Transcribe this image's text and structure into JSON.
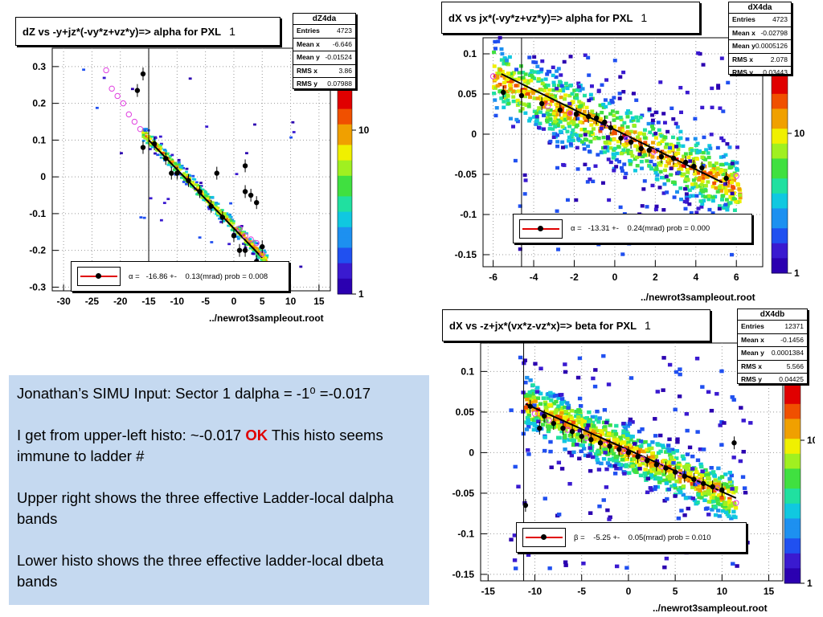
{
  "panels": [
    {
      "title": "dZ vs -y+jz*(-vy*z+vz*y)=> alpha for PXL",
      "title_num": "1",
      "stats_name": "dZ4da",
      "stats": [
        {
          "label": "Entries",
          "value": "4723"
        },
        {
          "label": "Mean x",
          "value": "-6.646"
        },
        {
          "label": "Mean y",
          "value": "-0.01524"
        },
        {
          "label": "RMS x",
          "value": "3.86"
        },
        {
          "label": "RMS y",
          "value": "0.07988"
        }
      ],
      "fit_text": "α =   -16.86 +-    0.13(mrad) prob = 0.008",
      "filename": "../newrot3sampleout.root",
      "palette_labels": [
        "10",
        "1"
      ]
    },
    {
      "title": "dX vs    jx*(-vy*z+vz*y)=> alpha for PXL",
      "title_num": "1",
      "stats_name": "dX4da",
      "stats": [
        {
          "label": "Entries",
          "value": "4723"
        },
        {
          "label": "Mean x",
          "value": "-0.02798"
        },
        {
          "label": "Mean y",
          "value": "0.0005126"
        },
        {
          "label": "RMS x",
          "value": "2.078"
        },
        {
          "label": "RMS y",
          "value": "0.03443"
        }
      ],
      "fit_text": "α =   -13.31 +-    0.24(mrad) prob = 0.000",
      "filename": "../newrot3sampleout.root",
      "palette_labels": [
        "10",
        "1"
      ]
    },
    {
      "title": "dX vs  -z+jx*(vx*z-vz*x)=> beta  for PXL",
      "title_num": "1",
      "stats_name": "dX4db",
      "stats": [
        {
          "label": "Entries",
          "value": "12371"
        },
        {
          "label": "Mean x",
          "value": "-0.1456"
        },
        {
          "label": "Mean y",
          "value": "0.0001384"
        },
        {
          "label": "RMS x",
          "value": "5.566"
        },
        {
          "label": "RMS y",
          "value": "0.04425"
        }
      ],
      "fit_text": "β =    -5.25 +-    0.05(mrad) prob = 0.010",
      "filename": "../newrot3sampleout.root",
      "palette_labels": [
        "10",
        "1"
      ]
    }
  ],
  "text": {
    "line1": "Jonathan’s SIMU  Input: Sector 1  dalpha = -1⁰ =-0.017",
    "line2_pre": "I get from upper-left histo: ~-0.017  ",
    "line2_ok": "OK",
    "line2_post": "  This histo seems immune to ladder #",
    "line3": "Upper right shows the three effective Ladder-local dalpha bands",
    "line4": "Lower histo shows the three effective ladder-local dbeta bands"
  },
  "colors": {
    "fit_line": "#000000",
    "marker_line": "#e00000",
    "profile_points": "#000000",
    "open_circles": "#e040e0",
    "text_panel_bg": "#c5d9f0",
    "ok_text": "#e00000"
  },
  "chart_data": [
    {
      "type": "heatmap",
      "xlim": [
        -32,
        17
      ],
      "ylim": [
        -0.31,
        0.35
      ],
      "xticks": [
        -30,
        -25,
        -20,
        -15,
        -10,
        -5,
        0,
        5,
        10,
        15
      ],
      "yticks": [
        -0.3,
        -0.2,
        -0.1,
        0,
        0.1,
        0.2,
        0.3
      ],
      "grid": true,
      "vertical_marker_x": -15,
      "fit": {
        "x0": -15,
        "y0": 0.1,
        "x1": 5,
        "y1": -0.22
      },
      "band": {
        "x0": -16,
        "y0": 0.12,
        "x1": 6,
        "y1": -0.23,
        "width": 0.03
      },
      "profile_points": [
        [
          -16,
          0.28
        ],
        [
          -17,
          0.235
        ],
        [
          -16,
          0.08
        ],
        [
          -14,
          0.09
        ],
        [
          -12,
          0.05
        ],
        [
          -10,
          0.01
        ],
        [
          -8,
          -0.01
        ],
        [
          -6,
          -0.04
        ],
        [
          -4,
          -0.08
        ],
        [
          -2,
          -0.11
        ],
        [
          0,
          -0.16
        ],
        [
          2,
          -0.2
        ],
        [
          4,
          -0.23
        ],
        [
          -3,
          0.01
        ],
        [
          2,
          0.03
        ],
        [
          2,
          -0.04
        ],
        [
          3,
          -0.05
        ],
        [
          4,
          -0.07
        ],
        [
          5,
          -0.19
        ],
        [
          1,
          -0.2
        ],
        [
          -11,
          0.01
        ]
      ],
      "open_points": [
        [
          -22.5,
          0.29
        ],
        [
          -21.5,
          0.24
        ],
        [
          -20.5,
          0.22
        ],
        [
          -19.5,
          0.2
        ],
        [
          -18.5,
          0.17
        ],
        [
          -17.5,
          0.15
        ],
        [
          -16.5,
          0.13
        ],
        [
          1,
          -0.14
        ],
        [
          2,
          -0.16
        ],
        [
          3,
          -0.17
        ],
        [
          4,
          -0.18
        ],
        [
          5,
          -0.21
        ]
      ]
    },
    {
      "type": "heatmap",
      "xlim": [
        -6.5,
        7.3
      ],
      "ylim": [
        -0.165,
        0.12
      ],
      "xticks": [
        -6,
        -4,
        -2,
        0,
        2,
        4,
        6
      ],
      "yticks": [
        -0.15,
        -0.1,
        -0.05,
        0,
        0.05,
        0.1
      ],
      "grid": true,
      "vertical_marker_x": -4.6,
      "fit": {
        "x0": -5.6,
        "y0": 0.075,
        "x1": 5.3,
        "y1": -0.06
      },
      "band": {
        "x0": -6,
        "y0": 0.072,
        "x1": 6.2,
        "y1": -0.07,
        "width": 0.04
      },
      "profile_points": [
        [
          -5.5,
          0.052
        ],
        [
          -4.6,
          0.048
        ],
        [
          -3.6,
          0.038
        ],
        [
          -2.7,
          0.03
        ],
        [
          -1.9,
          0.025
        ],
        [
          -1.3,
          0.022
        ],
        [
          -0.9,
          0.02
        ],
        [
          -0.5,
          0.015
        ],
        [
          -0.2,
          0.008
        ],
        [
          0.3,
          -0.005
        ],
        [
          0.8,
          -0.01
        ],
        [
          1.3,
          -0.018
        ],
        [
          1.7,
          -0.02
        ],
        [
          2.3,
          -0.028
        ],
        [
          2.9,
          -0.03
        ],
        [
          3.5,
          -0.035
        ],
        [
          3.9,
          -0.04
        ],
        [
          4.3,
          -0.042
        ],
        [
          5.5,
          -0.055
        ]
      ],
      "open_points": [
        [
          -6,
          0.072
        ],
        [
          -3.3,
          0.035
        ],
        [
          -2.2,
          0.026
        ],
        [
          -0.3,
          0.012
        ],
        [
          0.6,
          -0.006
        ],
        [
          1.9,
          -0.022
        ],
        [
          6,
          -0.052
        ]
      ]
    },
    {
      "type": "heatmap",
      "xlim": [
        -15.8,
        16.5
      ],
      "ylim": [
        -0.158,
        0.135
      ],
      "xticks": [
        -15,
        -10,
        -5,
        0,
        5,
        10,
        15
      ],
      "yticks": [
        -0.15,
        -0.1,
        -0.05,
        0,
        0.05,
        0.1
      ],
      "grid": true,
      "vertical_marker_x": -11.2,
      "fit": {
        "x0": -11,
        "y0": 0.06,
        "x1": 11.5,
        "y1": -0.056
      },
      "band": {
        "x0": -11,
        "y0": 0.06,
        "x1": 11.5,
        "y1": -0.058,
        "width": 0.03
      },
      "profile_points": [
        [
          -11,
          -0.065
        ],
        [
          -10.5,
          0.057
        ],
        [
          -9.5,
          0.03
        ],
        [
          -9,
          0.045
        ],
        [
          -8,
          0.036
        ],
        [
          -7,
          0.03
        ],
        [
          -6,
          0.026
        ],
        [
          -5,
          0.02
        ],
        [
          -4,
          0.016
        ],
        [
          -3,
          0.012
        ],
        [
          -2,
          0.008
        ],
        [
          -1,
          0.004
        ],
        [
          0,
          0.0
        ],
        [
          1,
          -0.005
        ],
        [
          2,
          -0.01
        ],
        [
          3,
          -0.015
        ],
        [
          4,
          -0.019
        ],
        [
          5,
          -0.024
        ],
        [
          6,
          -0.029
        ],
        [
          7,
          -0.033
        ],
        [
          8,
          -0.038
        ],
        [
          9,
          -0.042
        ],
        [
          10,
          -0.046
        ],
        [
          11.3,
          0.012
        ]
      ],
      "open_points": [
        [
          -10,
          0.048
        ],
        [
          -8.5,
          0.04
        ],
        [
          -6.5,
          0.028
        ],
        [
          -4.5,
          0.018
        ],
        [
          -2.5,
          0.01
        ],
        [
          -0.5,
          0.002
        ],
        [
          1.5,
          -0.008
        ],
        [
          3.5,
          -0.017
        ],
        [
          5.5,
          -0.027
        ],
        [
          7.5,
          -0.036
        ],
        [
          9.5,
          -0.044
        ],
        [
          11.5,
          -0.062
        ]
      ]
    }
  ]
}
